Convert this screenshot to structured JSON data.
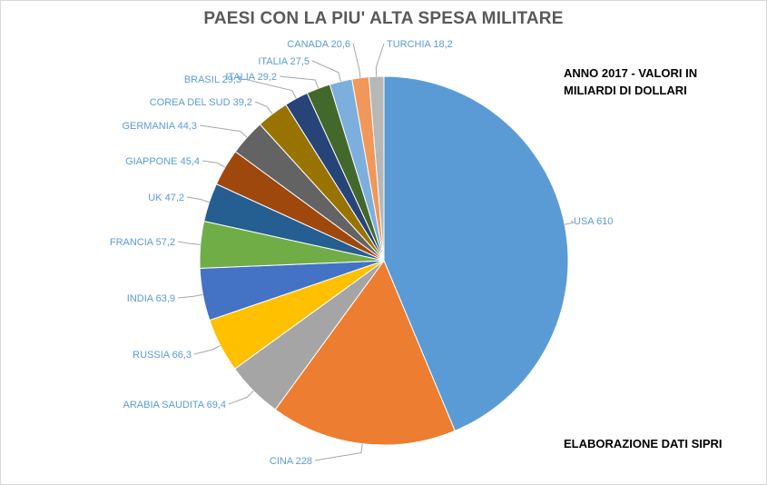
{
  "chart_data": {
    "type": "pie",
    "title": "PAESI CON LA PIU' ALTA SPESA MILITARE",
    "slices": [
      {
        "label": "USA",
        "value": 610,
        "value_text": "610",
        "color": "#5b9bd5"
      },
      {
        "label": "CINA",
        "value": 228,
        "value_text": "228",
        "color": "#ed7d31"
      },
      {
        "label": "ARABIA SAUDITA",
        "value": 69.4,
        "value_text": "69,4",
        "color": "#a5a5a5"
      },
      {
        "label": "RUSSIA",
        "value": 66.3,
        "value_text": "66,3",
        "color": "#ffc000"
      },
      {
        "label": "INDIA",
        "value": 63.9,
        "value_text": "63,9",
        "color": "#4472c4"
      },
      {
        "label": "FRANCIA",
        "value": 57.2,
        "value_text": "57,2",
        "color": "#70ad47"
      },
      {
        "label": "UK",
        "value": 47.2,
        "value_text": "47,2",
        "color": "#255e91"
      },
      {
        "label": "GIAPPONE",
        "value": 45.4,
        "value_text": "45,4",
        "color": "#9e480e"
      },
      {
        "label": "GERMANIA",
        "value": 44.3,
        "value_text": "44,3",
        "color": "#636363"
      },
      {
        "label": "COREA DEL SUD",
        "value": 39.2,
        "value_text": "39,2",
        "color": "#997300"
      },
      {
        "label": "BRASIL",
        "value": 29.3,
        "value_text": "29,3",
        "color": "#264478"
      },
      {
        "label": "ITALIA",
        "value": 29.2,
        "value_text": "29,2",
        "color": "#43682b"
      },
      {
        "label": "ITALIA",
        "value": 27.5,
        "value_text": "27,5",
        "color": "#7cafdd"
      },
      {
        "label": "CANADA",
        "value": 20.6,
        "value_text": "20,6",
        "color": "#f1975a"
      },
      {
        "label": "TURCHIA",
        "value": 18.2,
        "value_text": "18,2",
        "color": "#b7b7b7"
      }
    ],
    "label_color": "#5b9bd5"
  },
  "annotations": {
    "year_note": "ANNO 2017 - VALORI IN MILIARDI DI DOLLARI",
    "source_note": "ELABORAZIONE DATI SIPRI"
  }
}
